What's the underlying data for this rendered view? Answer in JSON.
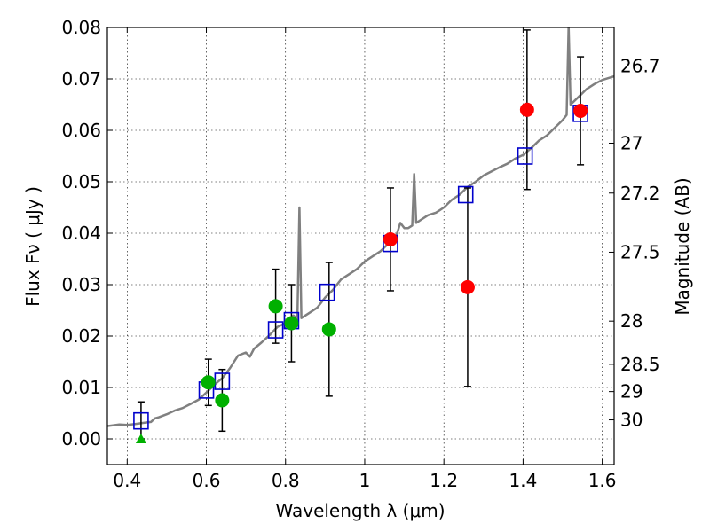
{
  "chart_data": {
    "type": "scatter",
    "title": "",
    "xlabel": "Wavelength  λ (μm)",
    "ylabel": "Flux  Fν  ( μJy )",
    "ylabel_right": "Magnitude (AB)",
    "xlim": [
      0.35,
      1.63
    ],
    "ylim": [
      -0.005,
      0.08
    ],
    "grid": true,
    "x_ticks": [
      {
        "value": 0.4,
        "label": "0.4"
      },
      {
        "value": 0.6,
        "label": "0.6"
      },
      {
        "value": 0.8,
        "label": "0.8"
      },
      {
        "value": 1.0,
        "label": "1"
      },
      {
        "value": 1.2,
        "label": "1.2"
      },
      {
        "value": 1.4,
        "label": "1.4"
      },
      {
        "value": 1.6,
        "label": "1.6"
      }
    ],
    "y_ticks": [
      {
        "value": 0.0,
        "label": "0.00"
      },
      {
        "value": 0.01,
        "label": "0.01"
      },
      {
        "value": 0.02,
        "label": "0.02"
      },
      {
        "value": 0.03,
        "label": "0.03"
      },
      {
        "value": 0.04,
        "label": "0.04"
      },
      {
        "value": 0.05,
        "label": "0.05"
      },
      {
        "value": 0.06,
        "label": "0.06"
      },
      {
        "value": 0.07,
        "label": "0.07"
      },
      {
        "value": 0.08,
        "label": "0.08"
      }
    ],
    "right_ticks": [
      {
        "flux": 0.0725,
        "label": "26.7"
      },
      {
        "flux": 0.0575,
        "label": "27"
      },
      {
        "flux": 0.0478,
        "label": "27.2"
      },
      {
        "flux": 0.0363,
        "label": "27.5"
      },
      {
        "flux": 0.0229,
        "label": "28"
      },
      {
        "flux": 0.0145,
        "label": "28.5"
      },
      {
        "flux": 0.0092,
        "label": "29"
      },
      {
        "flux": 0.0037,
        "label": "30"
      }
    ],
    "colors": {
      "model": "#808080",
      "synthetic": "#0000cc",
      "detections_red": "#ff0000",
      "detections_green": "#00b000",
      "errorbars": "#000000"
    },
    "model_spectrum": [
      [
        0.35,
        0.0025
      ],
      [
        0.38,
        0.0028
      ],
      [
        0.4,
        0.0027
      ],
      [
        0.42,
        0.0029
      ],
      [
        0.44,
        0.0031
      ],
      [
        0.46,
        0.0033
      ],
      [
        0.47,
        0.004
      ],
      [
        0.48,
        0.0042
      ],
      [
        0.5,
        0.0048
      ],
      [
        0.52,
        0.0055
      ],
      [
        0.54,
        0.006
      ],
      [
        0.56,
        0.0068
      ],
      [
        0.58,
        0.0076
      ],
      [
        0.6,
        0.009
      ],
      [
        0.62,
        0.0105
      ],
      [
        0.64,
        0.0118
      ],
      [
        0.66,
        0.0138
      ],
      [
        0.68,
        0.0162
      ],
      [
        0.7,
        0.0168
      ],
      [
        0.71,
        0.016
      ],
      [
        0.72,
        0.0175
      ],
      [
        0.74,
        0.0188
      ],
      [
        0.76,
        0.0202
      ],
      [
        0.78,
        0.0218
      ],
      [
        0.8,
        0.0225
      ],
      [
        0.81,
        0.0232
      ],
      [
        0.82,
        0.024
      ],
      [
        0.83,
        0.0233
      ],
      [
        0.835,
        0.045
      ],
      [
        0.84,
        0.0235
      ],
      [
        0.86,
        0.0245
      ],
      [
        0.88,
        0.0255
      ],
      [
        0.9,
        0.0275
      ],
      [
        0.92,
        0.029
      ],
      [
        0.94,
        0.031
      ],
      [
        0.96,
        0.032
      ],
      [
        0.98,
        0.033
      ],
      [
        1.0,
        0.0345
      ],
      [
        1.02,
        0.0355
      ],
      [
        1.04,
        0.0365
      ],
      [
        1.06,
        0.038
      ],
      [
        1.07,
        0.039
      ],
      [
        1.08,
        0.0395
      ],
      [
        1.09,
        0.042
      ],
      [
        1.1,
        0.041
      ],
      [
        1.11,
        0.041
      ],
      [
        1.12,
        0.0415
      ],
      [
        1.125,
        0.0515
      ],
      [
        1.13,
        0.042
      ],
      [
        1.14,
        0.0425
      ],
      [
        1.16,
        0.0435
      ],
      [
        1.18,
        0.044
      ],
      [
        1.2,
        0.045
      ],
      [
        1.22,
        0.0465
      ],
      [
        1.24,
        0.0475
      ],
      [
        1.26,
        0.049
      ],
      [
        1.28,
        0.05
      ],
      [
        1.3,
        0.0512
      ],
      [
        1.32,
        0.052
      ],
      [
        1.34,
        0.0528
      ],
      [
        1.36,
        0.0535
      ],
      [
        1.38,
        0.0545
      ],
      [
        1.4,
        0.0552
      ],
      [
        1.42,
        0.0565
      ],
      [
        1.44,
        0.058
      ],
      [
        1.46,
        0.059
      ],
      [
        1.48,
        0.0605
      ],
      [
        1.5,
        0.062
      ],
      [
        1.51,
        0.063
      ],
      [
        1.515,
        0.0802
      ],
      [
        1.52,
        0.065
      ],
      [
        1.54,
        0.0665
      ],
      [
        1.56,
        0.068
      ],
      [
        1.58,
        0.069
      ],
      [
        1.6,
        0.0698
      ],
      [
        1.63,
        0.0705
      ]
    ],
    "series": [
      {
        "marker": "square",
        "color": "#0000cc",
        "points": [
          {
            "x": 0.435,
            "y": 0.0035
          },
          {
            "x": 0.6,
            "y": 0.0095
          },
          {
            "x": 0.64,
            "y": 0.0112
          },
          {
            "x": 0.775,
            "y": 0.0212
          },
          {
            "x": 0.815,
            "y": 0.023
          },
          {
            "x": 0.905,
            "y": 0.0285
          },
          {
            "x": 1.065,
            "y": 0.038
          },
          {
            "x": 1.255,
            "y": 0.0475
          },
          {
            "x": 1.405,
            "y": 0.055
          },
          {
            "x": 1.545,
            "y": 0.0633
          }
        ]
      },
      {
        "marker": "circle",
        "color": "#00b000",
        "points": [
          {
            "x": 0.605,
            "y": 0.011,
            "err": 0.0045
          },
          {
            "x": 0.64,
            "y": 0.0075,
            "err": 0.006
          },
          {
            "x": 0.775,
            "y": 0.0258,
            "err": 0.0072
          },
          {
            "x": 0.815,
            "y": 0.0225,
            "err": 0.0075
          },
          {
            "x": 0.91,
            "y": 0.0213,
            "err": 0.013
          }
        ]
      },
      {
        "marker": "circle",
        "color": "#ff0000",
        "points": [
          {
            "x": 1.065,
            "y": 0.0388,
            "err": 0.01
          },
          {
            "x": 1.26,
            "y": 0.0295,
            "err": 0.0193
          },
          {
            "x": 1.41,
            "y": 0.064,
            "err": 0.0155
          },
          {
            "x": 1.545,
            "y": 0.0638,
            "err": 0.0105
          }
        ]
      },
      {
        "marker": "triangle",
        "color": "#00b000",
        "points": [
          {
            "x": 0.435,
            "y": 0.0
          }
        ]
      }
    ],
    "errorbar_only": [
      {
        "x": 0.435,
        "ylo": 0.0,
        "yhi": 0.0072
      }
    ]
  }
}
